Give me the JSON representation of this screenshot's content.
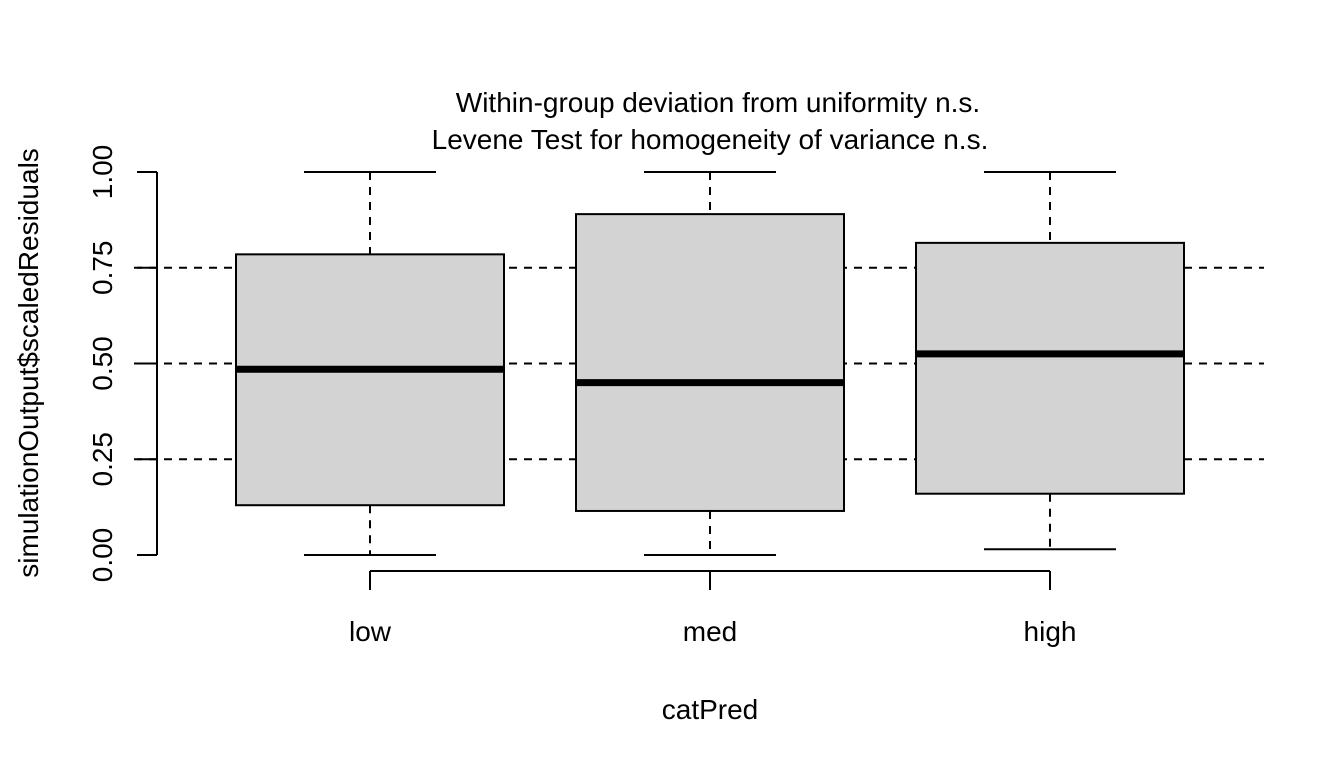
{
  "chart_data": {
    "type": "boxplot",
    "title": [
      "Within-group deviation from uniformity n.s.",
      "Levene Test for homogeneity of variance n.s."
    ],
    "xlabel": "catPred",
    "ylabel": "simulationOutput$scaledResiduals",
    "ylim": [
      0,
      1
    ],
    "yticks": [
      "0.00",
      "0.25",
      "0.50",
      "0.75",
      "1.00"
    ],
    "reference_lines": [
      0.25,
      0.5,
      0.75
    ],
    "categories": [
      "low",
      "med",
      "high"
    ],
    "boxes": [
      {
        "whisker_low": 0.0,
        "q1": 0.13,
        "median": 0.485,
        "q3": 0.785,
        "whisker_high": 1.0
      },
      {
        "whisker_low": 0.0,
        "q1": 0.115,
        "median": 0.45,
        "q3": 0.89,
        "whisker_high": 1.0
      },
      {
        "whisker_low": 0.015,
        "q1": 0.16,
        "median": 0.525,
        "q3": 0.815,
        "whisker_high": 1.0
      }
    ],
    "box_fill": "#d3d3d3"
  }
}
